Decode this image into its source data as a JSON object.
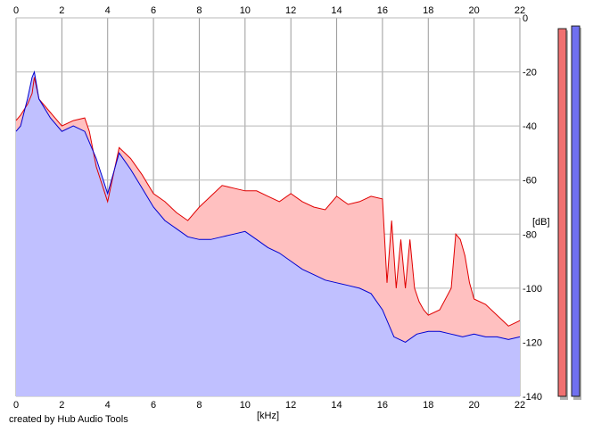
{
  "footer": {
    "credit": "created by Hub Audio Tools"
  },
  "chart_data": {
    "type": "area",
    "title": "",
    "xlabel": "[kHz]",
    "ylabel": "[dB]",
    "xlim": [
      0,
      22
    ],
    "ylim": [
      -140,
      0
    ],
    "x_ticks": [
      0,
      2,
      4,
      6,
      8,
      10,
      12,
      14,
      16,
      18,
      20,
      22
    ],
    "y_ticks": [
      0,
      -20,
      -40,
      -60,
      -80,
      -100,
      -120,
      -140
    ],
    "grid": true,
    "legend": "none",
    "series": [
      {
        "color": "#e00000",
        "fill": "#ffc0c0",
        "x": [
          0,
          0.2,
          0.5,
          0.7,
          0.8,
          1.0,
          1.5,
          2.0,
          2.5,
          3.0,
          3.2,
          3.5,
          4.0,
          4.5,
          5.0,
          5.5,
          6.0,
          6.5,
          7.0,
          7.5,
          8.0,
          8.5,
          9.0,
          9.5,
          10.0,
          10.5,
          11.0,
          11.5,
          12.0,
          12.5,
          13.0,
          13.5,
          14.0,
          14.5,
          15.0,
          15.5,
          16.0,
          16.2,
          16.4,
          16.6,
          16.8,
          17.0,
          17.2,
          17.4,
          17.6,
          17.8,
          18.0,
          18.5,
          19.0,
          19.2,
          19.4,
          19.6,
          19.8,
          20.0,
          20.5,
          21.0,
          21.5,
          22.0
        ],
        "values": [
          -38,
          -36,
          -32,
          -28,
          -22,
          -30,
          -35,
          -40,
          -38,
          -37,
          -42,
          -55,
          -68,
          -48,
          -52,
          -58,
          -65,
          -68,
          -72,
          -75,
          -70,
          -66,
          -62,
          -63,
          -64,
          -64,
          -66,
          -68,
          -65,
          -68,
          -70,
          -71,
          -66,
          -69,
          -68,
          -66,
          -67,
          -98,
          -75,
          -100,
          -82,
          -100,
          -82,
          -100,
          -105,
          -108,
          -110,
          -108,
          -100,
          -80,
          -82,
          -88,
          -98,
          -104,
          -106,
          -110,
          -114,
          -112
        ]
      },
      {
        "color": "#0000d0",
        "fill": "#c0c0ff",
        "x": [
          0,
          0.2,
          0.5,
          0.7,
          0.8,
          1.0,
          1.5,
          2.0,
          2.5,
          3.0,
          3.5,
          4.0,
          4.5,
          5.0,
          5.5,
          6.0,
          6.5,
          7.0,
          7.5,
          8.0,
          8.5,
          9.0,
          9.5,
          10.0,
          10.5,
          11.0,
          11.5,
          12.0,
          12.5,
          13.0,
          13.5,
          14.0,
          14.5,
          15.0,
          15.5,
          16.0,
          16.5,
          17.0,
          17.5,
          18.0,
          18.5,
          19.0,
          19.5,
          20.0,
          20.5,
          21.0,
          21.5,
          22.0
        ],
        "values": [
          -42,
          -40,
          -30,
          -22,
          -20,
          -30,
          -37,
          -42,
          -40,
          -42,
          -52,
          -65,
          -50,
          -56,
          -63,
          -70,
          -75,
          -78,
          -81,
          -82,
          -82,
          -81,
          -80,
          -79,
          -82,
          -85,
          -87,
          -90,
          -93,
          -95,
          -97,
          -98,
          -99,
          -100,
          -102,
          -108,
          -118,
          -120,
          -117,
          -116,
          -116,
          -117,
          -118,
          -117,
          -118,
          -118,
          -119,
          -118
        ]
      }
    ],
    "level_meters": [
      {
        "color": "#f07070",
        "top_db": -4
      },
      {
        "color": "#7070f0",
        "top_db": -3
      }
    ]
  }
}
